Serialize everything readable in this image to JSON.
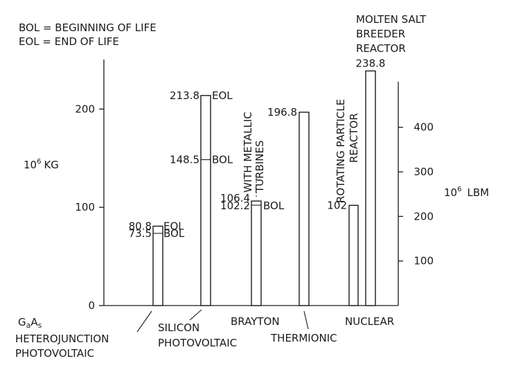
{
  "legend": {
    "bol": "BOL = BEGINNING OF LIFE",
    "eol": "EOL = END OF LIFE"
  },
  "units": {
    "left_base": "10",
    "left_exp": "6",
    "left_unit": "KG",
    "right_base": "10",
    "right_exp": "6",
    "right_unit": "LBM"
  },
  "chart_data": {
    "type": "bar",
    "title": "",
    "ylabel": "10^6 KG",
    "ylabel_right": "10^6 LBM",
    "ylim": [
      0,
      250
    ],
    "yticks": [
      0,
      100,
      200
    ],
    "yticks_right": [
      100,
      200,
      300,
      400
    ],
    "groups": [
      {
        "label_lines": [
          "GaAs",
          "HETEROJUNCTION",
          "PHOTOVOLTAIC"
        ]
      },
      {
        "label_lines": [
          "SILICON",
          "PHOTOVOLTAIC"
        ]
      },
      {
        "label_lines": [
          "BRAYTON"
        ],
        "annotation_lines": [
          "WITH METALLIC",
          "TURBINES"
        ]
      },
      {
        "label_lines": [
          "THERMIONIC"
        ]
      },
      {
        "label_lines": [
          "NUCLEAR"
        ]
      }
    ],
    "bars": [
      {
        "group": 0,
        "values": [
          {
            "value": 80.8,
            "label": "80.8",
            "tag": "EOL"
          },
          {
            "value": 73.5,
            "label": "73.5",
            "tag": "BOL"
          }
        ]
      },
      {
        "group": 1,
        "values": [
          {
            "value": 213.8,
            "label": "213.8",
            "tag": "EOL"
          },
          {
            "value": 148.5,
            "label": "148.5",
            "tag": "BOL"
          }
        ]
      },
      {
        "group": 2,
        "values": [
          {
            "value": 106.4,
            "label": "106.4",
            "tag": ""
          },
          {
            "value": 102.2,
            "label": "102.2",
            "tag": "BOL"
          }
        ]
      },
      {
        "group": 3,
        "values": [
          {
            "value": 196.8,
            "label": "196.8",
            "tag": ""
          }
        ]
      },
      {
        "group": 4,
        "name": "ROTATING PARTICLE REACTOR",
        "name_lines": [
          "ROTATING PARTICLE",
          "REACTOR"
        ],
        "values": [
          {
            "value": 102,
            "label": "102",
            "tag": ""
          }
        ]
      },
      {
        "group": 4,
        "name": "MOLTEN SALT BREEDER REACTOR",
        "name_lines": [
          "MOLTEN SALT",
          "BREEDER",
          "REACTOR"
        ],
        "values": [
          {
            "value": 238.8,
            "label": "238.8",
            "tag": ""
          }
        ]
      }
    ]
  }
}
